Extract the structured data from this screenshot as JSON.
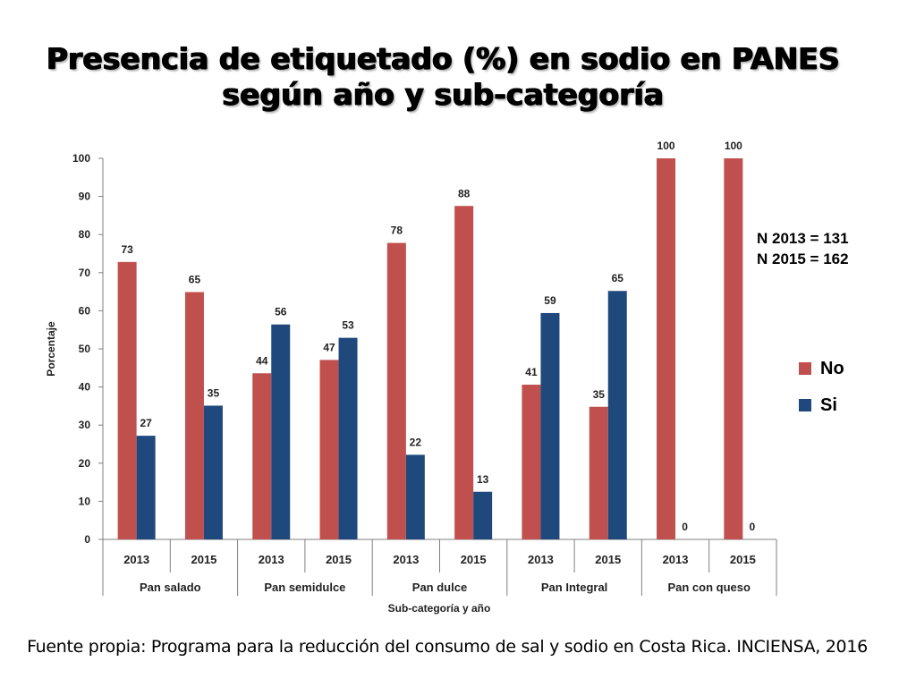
{
  "title_line1": "Presencia de etiquetado (%) en sodio en PANES",
  "title_line2": "según año y sub-categoría",
  "n_info": [
    "N 2013 = 131",
    "N 2015 = 162"
  ],
  "source": "Fuente propia: Programa para la reducción del consumo de sal y sodio en Costa Rica. INCIENSA, 2016",
  "colors": {
    "no": "#c0504d",
    "si": "#1f497d"
  },
  "chart_data": {
    "type": "bar",
    "title": "Presencia de etiquetado (%) en sodio en PANES según año y sub-categoría",
    "xlabel": "Sub-categoría y año",
    "ylabel": "Porcentaje",
    "ylim": [
      0,
      100
    ],
    "yticks": [
      0,
      10,
      20,
      30,
      40,
      50,
      60,
      70,
      80,
      90,
      100
    ],
    "groups": [
      "Pan salado",
      "Pan semidulce",
      "Pan dulce",
      "Pan Integral",
      "Pan con queso"
    ],
    "categories": [
      "2013",
      "2015",
      "2013",
      "2015",
      "2013",
      "2015",
      "2013",
      "2015",
      "2013",
      "2015"
    ],
    "series": [
      {
        "name": "No",
        "values": [
          72.8,
          64.9,
          43.6,
          47.1,
          77.8,
          87.5,
          40.6,
          34.8,
          100,
          100
        ],
        "labels": [
          "73",
          "65",
          "44",
          "47",
          "78",
          "88",
          "41",
          "35",
          "100",
          "100"
        ]
      },
      {
        "name": "Si",
        "values": [
          27.2,
          35.1,
          56.4,
          52.9,
          22.2,
          12.5,
          59.4,
          65.2,
          0,
          0
        ],
        "labels": [
          "27",
          "35",
          "56",
          "53",
          "22",
          "13",
          "59",
          "65",
          "0",
          "0"
        ]
      }
    ],
    "legend": "right"
  }
}
